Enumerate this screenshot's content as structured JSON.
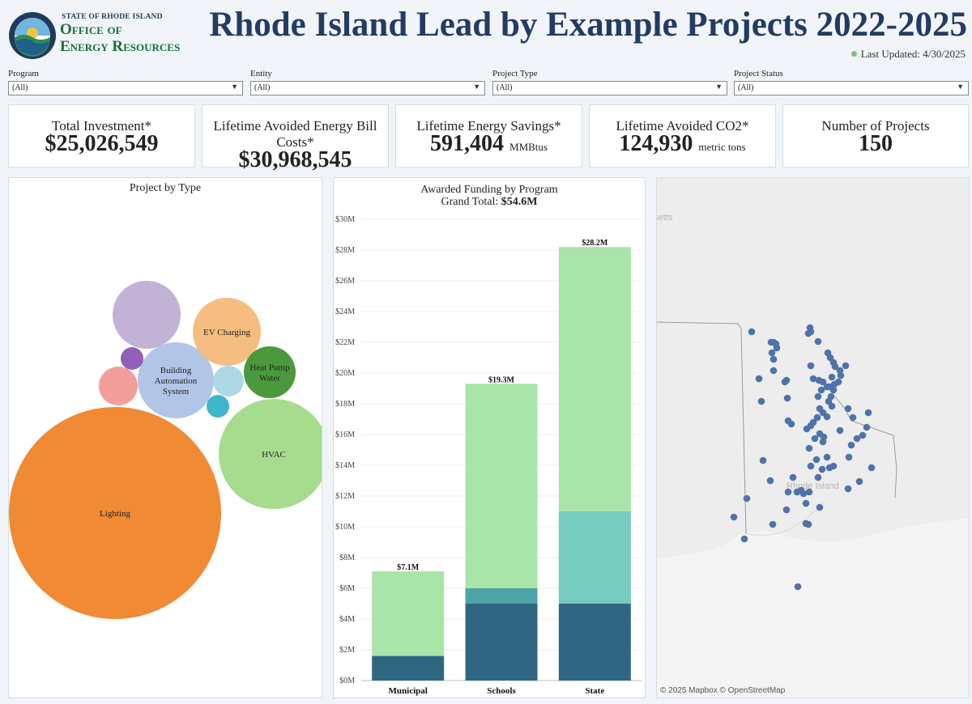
{
  "header": {
    "logo_small": "STATE OF RHODE ISLAND",
    "logo_line1": "Office of",
    "logo_line2": "Energy Resources",
    "title": "Rhode Island Lead by Example Projects 2022-2025",
    "last_updated": "Last Updated: 4/30/2025",
    "status_dot_color": "#7bbf73"
  },
  "filters": [
    {
      "label": "Program",
      "value": "(All)"
    },
    {
      "label": "Entity",
      "value": "(All)"
    },
    {
      "label": "Project Type",
      "value": "(All)"
    },
    {
      "label": "Project Status",
      "value": "(All)"
    }
  ],
  "kpis": [
    {
      "label": "Total Investment*",
      "value": "$25,026,549",
      "unit": ""
    },
    {
      "label": "Lifetime Avoided Energy Bill Costs*",
      "value": "$30,968,545",
      "unit": ""
    },
    {
      "label": "Lifetime Energy Savings*",
      "value": "591,404",
      "unit": "MMBtus"
    },
    {
      "label": "Lifetime Avoided CO2*",
      "value": "124,930",
      "unit": "metric tons"
    },
    {
      "label": "Number of Projects",
      "value": "150",
      "unit": ""
    }
  ],
  "bubble_panel": {
    "title": "Project by Type",
    "bubbles": [
      {
        "label": "Lighting",
        "color": "#f08a35"
      },
      {
        "label": "HVAC",
        "color": "#a7dc8e"
      },
      {
        "label": "Building Automation System",
        "lines": [
          "Building",
          "Automation",
          "System"
        ],
        "color": "#b1c5e6"
      },
      {
        "label": "EV Charging",
        "color": "#f5bd80"
      },
      {
        "label": "Heat Pump Water",
        "lines": [
          "Heat Pump",
          "Water"
        ],
        "color": "#4a9a3d"
      },
      {
        "label": "",
        "color": "#c2b2d6"
      },
      {
        "label": "",
        "color": "#f29f9b"
      },
      {
        "label": "",
        "color": "#9061b6"
      },
      {
        "label": "",
        "color": "#acd9e5"
      },
      {
        "label": "",
        "color": "#3fb6cc"
      }
    ]
  },
  "chart_data": {
    "type": "bar",
    "title": "Awarded Funding by Program",
    "subtitle_prefix": "Grand Total: ",
    "subtitle_value": "$54.6M",
    "categories": [
      "Municipal",
      "Schools",
      "State"
    ],
    "series": [
      {
        "values": [
          1.6,
          5.0,
          5.0
        ],
        "color": "#2f6782"
      },
      {
        "values": [
          0,
          1.0,
          6.0
        ],
        "color": "#77cbbd"
      },
      {
        "values": [
          5.5,
          13.3,
          17.2
        ],
        "color": "#a9e4a9"
      }
    ],
    "series_colors_alt": {
      "Schools": [
        "#2f6782",
        "#4ea4a8",
        "#a9e4a9"
      ]
    },
    "totals": [
      7.1,
      19.3,
      28.2
    ],
    "total_labels": [
      "$7.1M",
      "$19.3M",
      "$28.2M"
    ],
    "ylim": [
      0,
      30
    ],
    "yticks": [
      "$0M",
      "$2M",
      "$4M",
      "$6M",
      "$8M",
      "$10M",
      "$12M",
      "$14M",
      "$16M",
      "$18M",
      "$20M",
      "$22M",
      "$24M",
      "$26M",
      "$28M",
      "$30M"
    ],
    "grid": true
  },
  "map": {
    "state_label": "Rhode Island",
    "neighbor_label": "usetts",
    "credit": "© 2025 Mapbox  © OpenStreetMap",
    "marker_color": "#4f73a8"
  }
}
